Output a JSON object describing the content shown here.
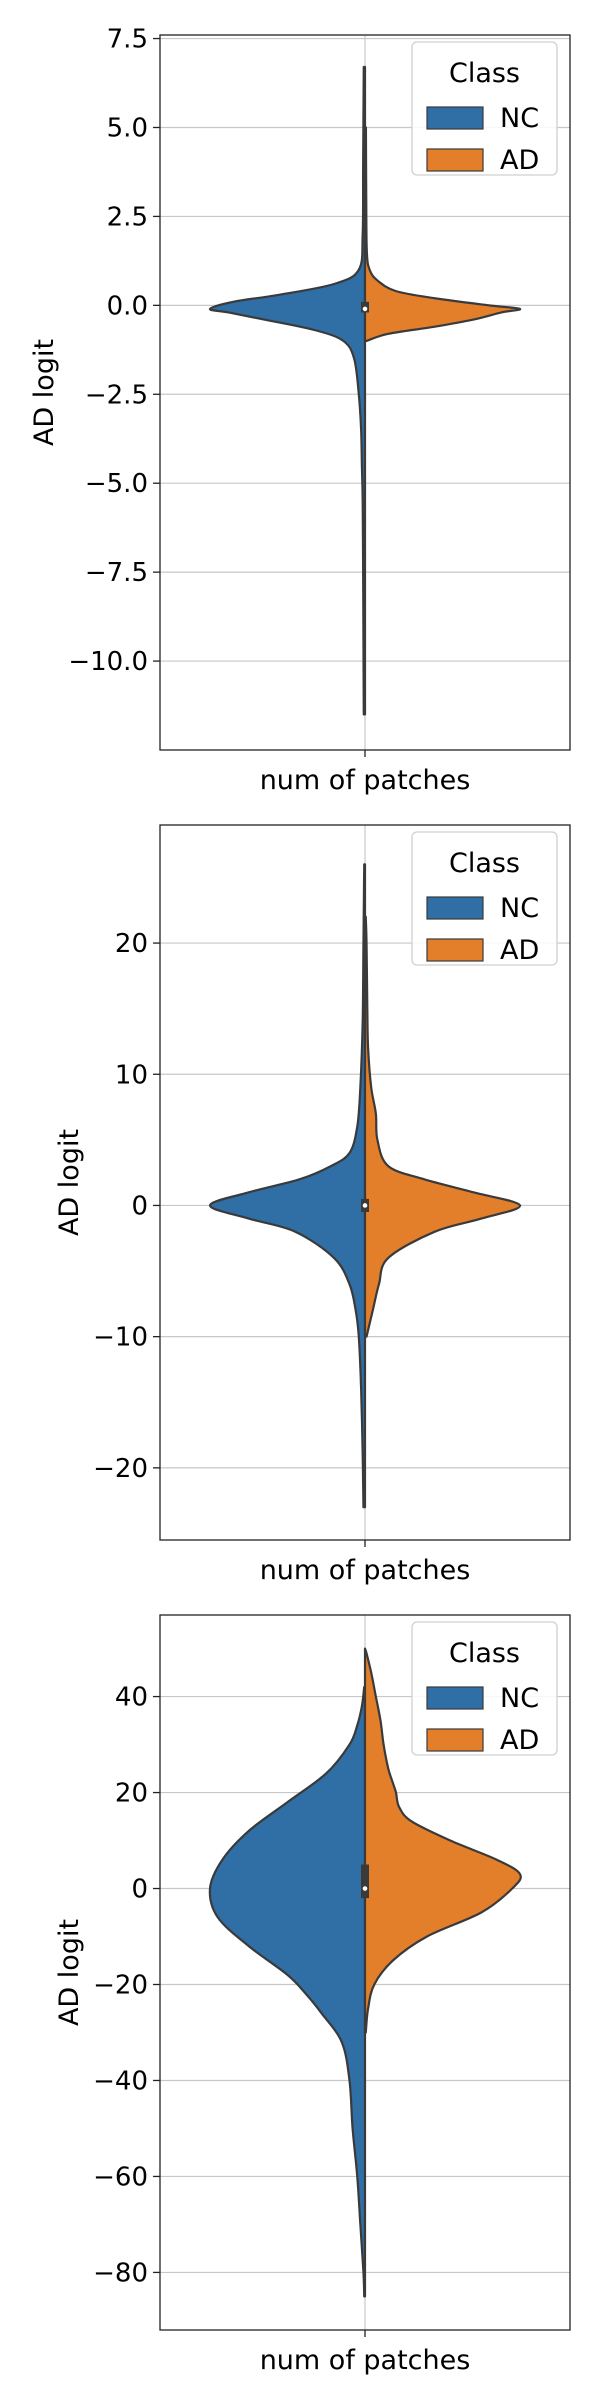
{
  "colors": {
    "nc": "#2f6fa5",
    "ad": "#e37f2b",
    "grid": "#c8c8c8",
    "outline": "#3a3a3a"
  },
  "chart_data": [
    {
      "type": "violin",
      "xlabel": "num of patches",
      "ylabel": "AD logit",
      "categories": [
        "num of patches"
      ],
      "ylim": [
        -12.5,
        7.6
      ],
      "yticks": [
        7.5,
        5.0,
        2.5,
        0.0,
        -2.5,
        -5.0,
        -7.5,
        -10.0
      ],
      "ytick_labels": [
        "7.5",
        "5.0",
        "2.5",
        "0.0",
        "−2.5",
        "−5.0",
        "−7.5",
        "−10.0"
      ],
      "grid": true,
      "legend": {
        "title": "Class",
        "position": "top-right",
        "entries": [
          "NC",
          "AD"
        ]
      },
      "series": [
        {
          "name": "NC",
          "side": "left",
          "profile": [
            [
              -11.5,
              0.008
            ],
            [
              -9.5,
              0.01
            ],
            [
              -7.5,
              0.012
            ],
            [
              -5.5,
              0.015
            ],
            [
              -4.5,
              0.02
            ],
            [
              -3.5,
              0.025
            ],
            [
              -2.5,
              0.04
            ],
            [
              -1.5,
              0.07
            ],
            [
              -1.0,
              0.14
            ],
            [
              -0.7,
              0.32
            ],
            [
              -0.4,
              0.65
            ],
            [
              -0.2,
              0.88
            ],
            [
              -0.1,
              1.0
            ],
            [
              0.1,
              0.85
            ],
            [
              0.3,
              0.55
            ],
            [
              0.6,
              0.2
            ],
            [
              1.0,
              0.04
            ],
            [
              2.0,
              0.015
            ],
            [
              4.0,
              0.012
            ],
            [
              6.7,
              0.008
            ]
          ]
        },
        {
          "name": "AD",
          "side": "right",
          "profile": [
            [
              -1.0,
              0.01
            ],
            [
              -0.8,
              0.15
            ],
            [
              -0.6,
              0.45
            ],
            [
              -0.4,
              0.7
            ],
            [
              -0.2,
              0.88
            ],
            [
              -0.1,
              1.0
            ],
            [
              0.0,
              0.8
            ],
            [
              0.2,
              0.45
            ],
            [
              0.4,
              0.2
            ],
            [
              0.7,
              0.08
            ],
            [
              1.0,
              0.03
            ],
            [
              1.5,
              0.012
            ],
            [
              3.0,
              0.008
            ],
            [
              5.0,
              0.006
            ]
          ]
        }
      ],
      "box": {
        "q1": -0.2,
        "median": -0.1,
        "q3": 0.1,
        "whisker_low": -0.5,
        "whisker_high": 0.3
      }
    },
    {
      "type": "violin",
      "xlabel": "num of patches",
      "ylabel": "AD logit",
      "categories": [
        "num of patches"
      ],
      "ylim": [
        -25.5,
        29
      ],
      "yticks": [
        20,
        10,
        0,
        -10,
        -20
      ],
      "ytick_labels": [
        "20",
        "10",
        "0",
        "−10",
        "−20"
      ],
      "grid": true,
      "legend": {
        "title": "Class",
        "position": "top-right",
        "entries": [
          "NC",
          "AD"
        ]
      },
      "series": [
        {
          "name": "NC",
          "side": "left",
          "profile": [
            [
              -23,
              0.01
            ],
            [
              -19,
              0.015
            ],
            [
              -14,
              0.025
            ],
            [
              -10,
              0.04
            ],
            [
              -8,
              0.06
            ],
            [
              -6,
              0.1
            ],
            [
              -4,
              0.2
            ],
            [
              -2,
              0.45
            ],
            [
              -1,
              0.75
            ],
            [
              0,
              1.0
            ],
            [
              1,
              0.75
            ],
            [
              2,
              0.42
            ],
            [
              3,
              0.22
            ],
            [
              4,
              0.1
            ],
            [
              6,
              0.05
            ],
            [
              9,
              0.03
            ],
            [
              14,
              0.015
            ],
            [
              20,
              0.01
            ],
            [
              26,
              0.005
            ]
          ]
        },
        {
          "name": "AD",
          "side": "right",
          "profile": [
            [
              -10,
              0.01
            ],
            [
              -8,
              0.05
            ],
            [
              -6,
              0.09
            ],
            [
              -4,
              0.15
            ],
            [
              -2,
              0.45
            ],
            [
              -1,
              0.75
            ],
            [
              0,
              1.0
            ],
            [
              1,
              0.7
            ],
            [
              2,
              0.38
            ],
            [
              3,
              0.15
            ],
            [
              5,
              0.08
            ],
            [
              7,
              0.07
            ],
            [
              9,
              0.04
            ],
            [
              12,
              0.02
            ],
            [
              15,
              0.015
            ],
            [
              20,
              0.01
            ],
            [
              22,
              0.005
            ]
          ]
        }
      ],
      "box": {
        "q1": -0.5,
        "median": 0,
        "q3": 0.5,
        "whisker_low": -1,
        "whisker_high": 1
      }
    },
    {
      "type": "violin",
      "xlabel": "num of patches",
      "ylabel": "AD logit",
      "categories": [
        "num of patches"
      ],
      "ylim": [
        -92,
        57
      ],
      "yticks": [
        40,
        20,
        0,
        -20,
        -40,
        -60,
        -80
      ],
      "ytick_labels": [
        "40",
        "20",
        "0",
        "−20",
        "−40",
        "−60",
        "−80"
      ],
      "grid": true,
      "legend": {
        "title": "Class",
        "position": "top-right",
        "entries": [
          "NC",
          "AD"
        ]
      },
      "series": [
        {
          "name": "NC",
          "side": "left",
          "profile": [
            [
              -85,
              0.005
            ],
            [
              -80,
              0.01
            ],
            [
              -70,
              0.03
            ],
            [
              -60,
              0.05
            ],
            [
              -50,
              0.08
            ],
            [
              -40,
              0.1
            ],
            [
              -32,
              0.15
            ],
            [
              -26,
              0.28
            ],
            [
              -22,
              0.38
            ],
            [
              -18,
              0.5
            ],
            [
              -12,
              0.75
            ],
            [
              -6,
              0.95
            ],
            [
              0,
              1.0
            ],
            [
              6,
              0.92
            ],
            [
              12,
              0.75
            ],
            [
              18,
              0.5
            ],
            [
              24,
              0.25
            ],
            [
              30,
              0.1
            ],
            [
              34,
              0.05
            ],
            [
              38,
              0.02
            ],
            [
              42,
              0.005
            ]
          ]
        },
        {
          "name": "AD",
          "side": "right",
          "profile": [
            [
              -30,
              0.005
            ],
            [
              -25,
              0.02
            ],
            [
              -20,
              0.06
            ],
            [
              -15,
              0.18
            ],
            [
              -10,
              0.4
            ],
            [
              -5,
              0.75
            ],
            [
              0,
              0.95
            ],
            [
              3,
              1.0
            ],
            [
              6,
              0.85
            ],
            [
              10,
              0.55
            ],
            [
              14,
              0.3
            ],
            [
              17,
              0.22
            ],
            [
              20,
              0.2
            ],
            [
              22,
              0.18
            ],
            [
              25,
              0.15
            ],
            [
              30,
              0.12
            ],
            [
              35,
              0.1
            ],
            [
              40,
              0.07
            ],
            [
              45,
              0.04
            ],
            [
              49,
              0.01
            ],
            [
              50,
              0.0
            ]
          ]
        }
      ],
      "box": {
        "q1": -2,
        "median": 0,
        "q3": 5,
        "whisker_low": -3,
        "whisker_high": 10
      }
    }
  ]
}
